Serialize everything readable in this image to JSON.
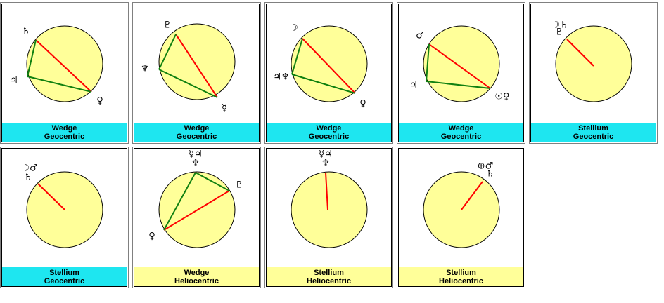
{
  "panels": [
    {
      "labels": [
        "♄",
        "♃",
        "♀"
      ],
      "pattern": "Wedge",
      "mode": "Geocentric"
    },
    {
      "labels": [
        "♇",
        "♆",
        "☿"
      ],
      "pattern": "Wedge",
      "mode": "Geocentric"
    },
    {
      "labels": [
        "☽",
        "♃♆",
        "♀"
      ],
      "pattern": "Wedge",
      "mode": "Geocentric"
    },
    {
      "labels": [
        "♂",
        "♃",
        "☉♀"
      ],
      "pattern": "Wedge",
      "mode": "Geocentric"
    },
    {
      "labels": [
        "☽♄",
        "♇"
      ],
      "pattern": "Stellium",
      "mode": "Geocentric"
    },
    {
      "labels": [
        "☽♂",
        "♄"
      ],
      "pattern": "Stellium",
      "mode": "Geocentric"
    },
    {
      "labels": [
        "☿♃",
        "♆",
        "♇",
        "♀"
      ],
      "pattern": "Wedge",
      "mode": "Heliocentric"
    },
    {
      "labels": [
        "☿♃",
        "♆"
      ],
      "pattern": "Stellium",
      "mode": "Heliocentric"
    },
    {
      "labels": [
        "⊕♂",
        "♄"
      ],
      "pattern": "Stellium",
      "mode": "Heliocentric"
    }
  ]
}
